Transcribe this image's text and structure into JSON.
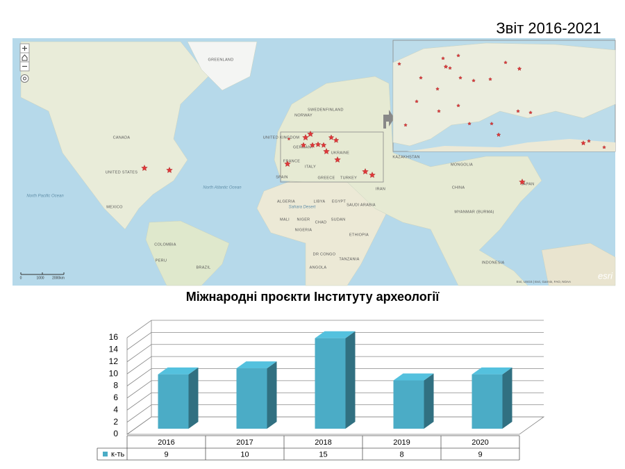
{
  "header": {
    "title": "Звіт 2016-2021"
  },
  "map": {
    "labels": [
      "GREENLAND",
      "CANADA",
      "UNITED STATES",
      "MEXICO",
      "COLOMBIA",
      "BRAZIL",
      "PERU",
      "UNITED KINGDOM",
      "NORWAY",
      "SWEDEN",
      "FINLAND",
      "GERMANY",
      "FRANCE",
      "SPAIN",
      "ITALY",
      "UKRAINE",
      "GREECE",
      "TURKEY",
      "KAZAKHSTAN",
      "MONGOLIA",
      "CHINA",
      "IRAN",
      "ALGERIA",
      "LIBYA",
      "EGYPT",
      "SAUDI ARABIA",
      "MALI",
      "NIGER",
      "CHAD",
      "SUDAN",
      "NIGERIA",
      "ETHIOPIA",
      "DR CONGO",
      "TANZANIA",
      "ANGOLA",
      "MYANMAR (BURMA)",
      "JAPAN",
      "INDONESIA",
      "North Pacific Ocean",
      "North Atlantic Ocean",
      "Sahara Desert"
    ],
    "scale": [
      "0",
      "1000",
      "2000km"
    ],
    "attribution": "Esri, USGS | Esri, Garmin, FAO, NOAA",
    "logo": "esri"
  },
  "chart_data": {
    "type": "bar",
    "title": "Міжнародні проєкти Інституту археології",
    "categories": [
      "2016",
      "2017",
      "2018",
      "2019",
      "2020"
    ],
    "series": [
      {
        "name": "к-ть",
        "color": "#4bacc6",
        "values": [
          9,
          10,
          15,
          8,
          9
        ]
      }
    ],
    "ylim": [
      0,
      16
    ],
    "yticks": [
      0,
      2,
      4,
      6,
      8,
      10,
      12,
      14,
      16
    ],
    "grid": true,
    "data_table": true
  }
}
